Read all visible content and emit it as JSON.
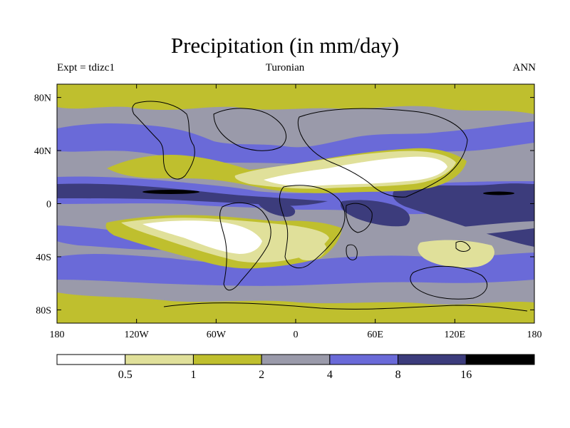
{
  "title": "Precipitation (in mm/day)",
  "subtitle": {
    "left": "Expt = tdizc1",
    "center": "Turonian",
    "right": "ANN"
  },
  "map": {
    "lon_range": [
      -180,
      180
    ],
    "lat_range": [
      -90,
      90
    ],
    "lon_ticks": [
      {
        "value": -180,
        "label": "180"
      },
      {
        "value": -120,
        "label": "120W"
      },
      {
        "value": -60,
        "label": "60W"
      },
      {
        "value": 0,
        "label": "0"
      },
      {
        "value": 60,
        "label": "60E"
      },
      {
        "value": 120,
        "label": "120E"
      },
      {
        "value": 180,
        "label": "180"
      }
    ],
    "lat_ticks": [
      {
        "value": 80,
        "label": "80N"
      },
      {
        "value": 40,
        "label": "40N"
      },
      {
        "value": 0,
        "label": "0"
      },
      {
        "value": -40,
        "label": "40S"
      },
      {
        "value": -80,
        "label": "80S"
      }
    ]
  },
  "colorbar": {
    "colors": [
      "#ffffff",
      "#e0e09a",
      "#bfbf2e",
      "#9a9aaa",
      "#6a6ad8",
      "#3c3c7c",
      "#000000"
    ],
    "labels": [
      "0.5",
      "1",
      "2",
      "4",
      "8",
      "16"
    ]
  },
  "colors": {
    "bin_lt_0_5": "#ffffff",
    "bin_0_5_1": "#e0e09a",
    "bin_1_2": "#bfbf2e",
    "bin_2_4": "#9a9aaa",
    "bin_4_8": "#6a6ad8",
    "bin_8_16": "#3c3c7c",
    "bin_gt_16": "#000000"
  }
}
